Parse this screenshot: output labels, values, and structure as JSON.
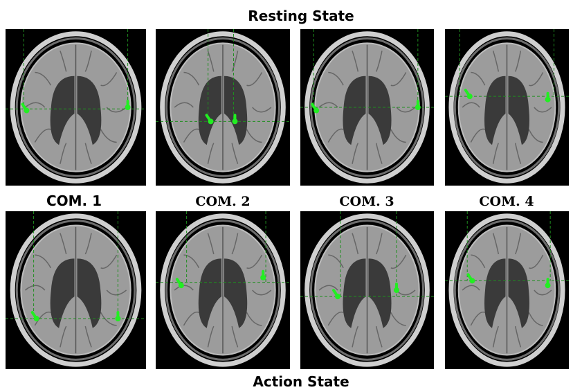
{
  "title_top": "Resting State",
  "labels": [
    "COM. 1",
    "COM. 2",
    "COM. 3",
    "COM. 4"
  ],
  "title_bottom": "Action State"
}
